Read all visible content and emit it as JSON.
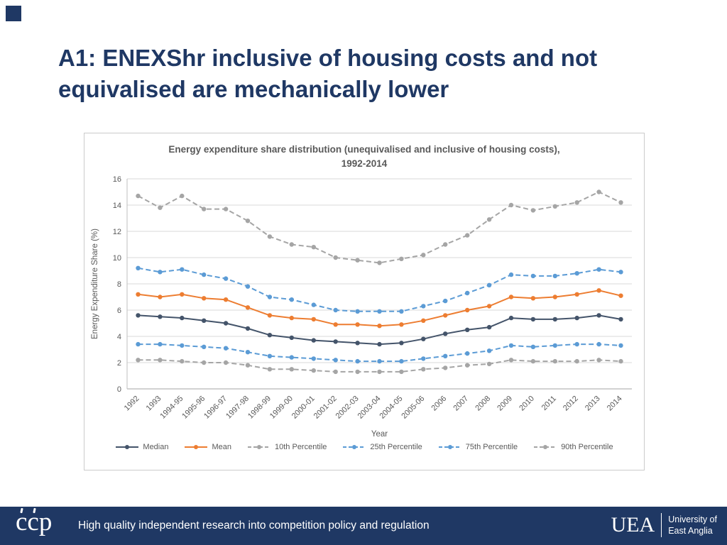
{
  "slide": {
    "title_line1": "A1: ENEXShr inclusive of housing costs and not",
    "title_line2": "equivalised are mechanically lower",
    "footer": {
      "logo_text": "ccp",
      "tagline": "High quality independent research into competition policy and regulation",
      "uea_abbr": "UEA",
      "uea_name_line1": "University of",
      "uea_name_line2": "East Anglia"
    }
  },
  "chart_data": {
    "type": "line",
    "title_line1": "Energy expenditure share distribution (unequivalised and inclusive of housing costs),",
    "title_line2": "1992-2014",
    "xlabel": "Year",
    "ylabel": "Energy Expenditure Share (%)",
    "ylim": [
      0,
      16
    ],
    "ytick_step": 2,
    "grid": true,
    "legend_position": "bottom",
    "categories": [
      "1992",
      "1993",
      "1994-95",
      "1995-96",
      "1996-97",
      "1997-98",
      "1998-99",
      "1999-00",
      "2000-01",
      "2001-02",
      "2002-03",
      "2003-04",
      "2004-05",
      "2005-06",
      "2006",
      "2007",
      "2008",
      "2009",
      "2010",
      "2011",
      "2012",
      "2013",
      "2014"
    ],
    "series": [
      {
        "name": "Median",
        "color": "#44546A",
        "dash": "solid",
        "values": [
          5.6,
          5.5,
          5.4,
          5.2,
          5.0,
          4.6,
          4.1,
          3.9,
          3.7,
          3.6,
          3.5,
          3.4,
          3.5,
          3.8,
          4.2,
          4.5,
          4.7,
          5.4,
          5.3,
          5.3,
          5.4,
          5.6,
          5.3
        ]
      },
      {
        "name": "Mean",
        "color": "#ED7D31",
        "dash": "solid",
        "values": [
          7.2,
          7.0,
          7.2,
          6.9,
          6.8,
          6.2,
          5.6,
          5.4,
          5.3,
          4.9,
          4.9,
          4.8,
          4.9,
          5.2,
          5.6,
          6.0,
          6.3,
          7.0,
          6.9,
          7.0,
          7.2,
          7.5,
          7.1
        ]
      },
      {
        "name": "10th Percentile",
        "color": "#A5A5A5",
        "dash": "dashed",
        "values": [
          2.2,
          2.2,
          2.1,
          2.0,
          2.0,
          1.8,
          1.5,
          1.5,
          1.4,
          1.3,
          1.3,
          1.3,
          1.3,
          1.5,
          1.6,
          1.8,
          1.9,
          2.2,
          2.1,
          2.1,
          2.1,
          2.2,
          2.1
        ]
      },
      {
        "name": "25th Percentile",
        "color": "#5B9BD5",
        "dash": "dashed",
        "values": [
          3.4,
          3.4,
          3.3,
          3.2,
          3.1,
          2.8,
          2.5,
          2.4,
          2.3,
          2.2,
          2.1,
          2.1,
          2.1,
          2.3,
          2.5,
          2.7,
          2.9,
          3.3,
          3.2,
          3.3,
          3.4,
          3.4,
          3.3
        ]
      },
      {
        "name": "75th Percentile",
        "color": "#5B9BD5",
        "dash": "dashed",
        "values": [
          9.2,
          8.9,
          9.1,
          8.7,
          8.4,
          7.8,
          7.0,
          6.8,
          6.4,
          6.0,
          5.9,
          5.9,
          5.9,
          6.3,
          6.7,
          7.3,
          7.9,
          8.7,
          8.6,
          8.6,
          8.8,
          9.1,
          8.9
        ]
      },
      {
        "name": "90th Percentile",
        "color": "#A5A5A5",
        "dash": "dashed",
        "values": [
          14.7,
          13.8,
          14.7,
          13.7,
          13.7,
          12.8,
          11.6,
          11.0,
          10.8,
          10.0,
          9.8,
          9.6,
          9.9,
          10.2,
          11.0,
          11.7,
          12.9,
          14.0,
          13.6,
          13.9,
          14.2,
          15.0,
          14.2
        ]
      }
    ]
  }
}
